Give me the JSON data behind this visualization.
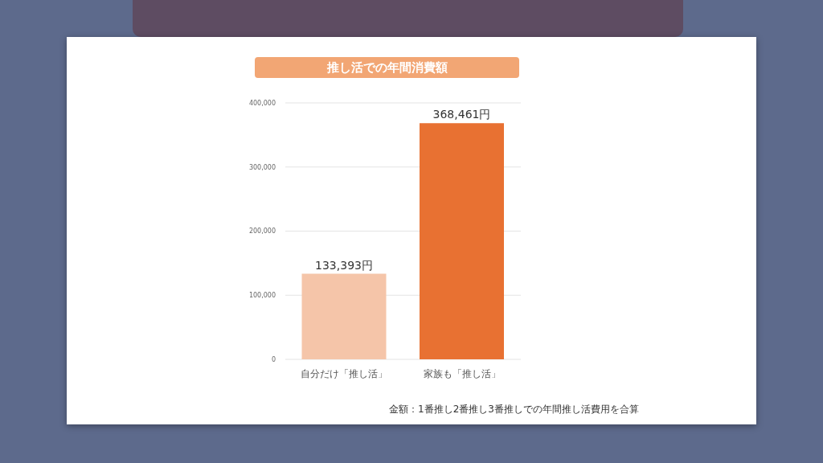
{
  "chart_data": {
    "type": "bar",
    "title": "推し活での年間消費額",
    "categories": [
      "自分だけ「推し活」",
      "家族も「推し活」"
    ],
    "values": [
      133393,
      368461
    ],
    "colors": [
      "#f5c5a9",
      "#e87132"
    ],
    "value_labels": [
      "133,393円",
      "368,461円"
    ],
    "ylim": [
      0,
      400000
    ],
    "yticks": [
      0,
      {
        "value": 100000,
        "label": "100,000"
      },
      {
        "value": 200000,
        "label": "200,000"
      },
      {
        "value": 300000,
        "label": "300,000"
      },
      {
        "value": 400000,
        "label": "400,000"
      }
    ],
    "grid": "y",
    "annotations": [
      "金額：1番推し2番推し3番推しでの年間推し活費用を合算"
    ]
  }
}
